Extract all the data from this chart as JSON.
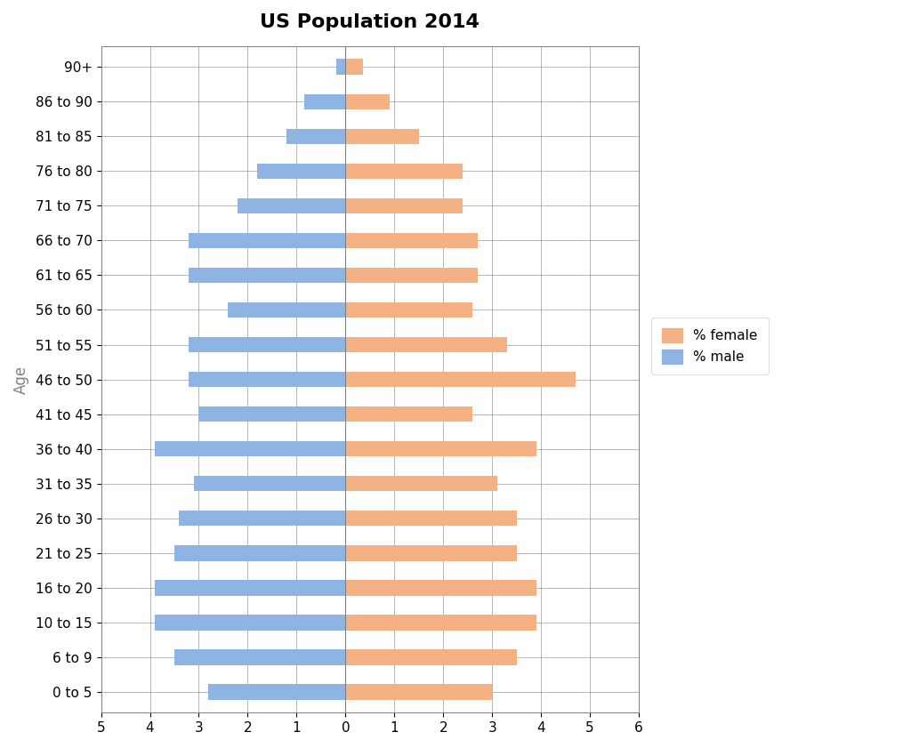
{
  "title": "US Population 2014",
  "age_groups": [
    "0 to 5",
    "6 to 9",
    "10 to 15",
    "16 to 20",
    "21 to 25",
    "26 to 30",
    "31 to 35",
    "36 to 40",
    "41 to 45",
    "46 to 50",
    "51 to 55",
    "56 to 60",
    "61 to 65",
    "66 to 70",
    "71 to 75",
    "76 to 80",
    "81 to 85",
    "86 to 90",
    "90+"
  ],
  "male": [
    2.8,
    3.5,
    3.9,
    3.9,
    3.5,
    3.4,
    3.1,
    3.9,
    3.0,
    3.2,
    3.2,
    2.4,
    3.2,
    3.2,
    2.2,
    1.8,
    1.2,
    0.85,
    0.18
  ],
  "female": [
    3.0,
    3.5,
    3.9,
    3.9,
    3.5,
    3.5,
    3.1,
    3.9,
    2.6,
    4.7,
    3.3,
    2.6,
    2.7,
    2.7,
    2.4,
    2.4,
    1.5,
    0.9,
    0.35
  ],
  "male_color": "#8db4e2",
  "female_color": "#f4b183",
  "background_color": "#ffffff",
  "title_fontsize": 16,
  "ylabel": "Age",
  "ylabel_color": "#808080",
  "legend_female": "% female",
  "legend_male": "% male"
}
